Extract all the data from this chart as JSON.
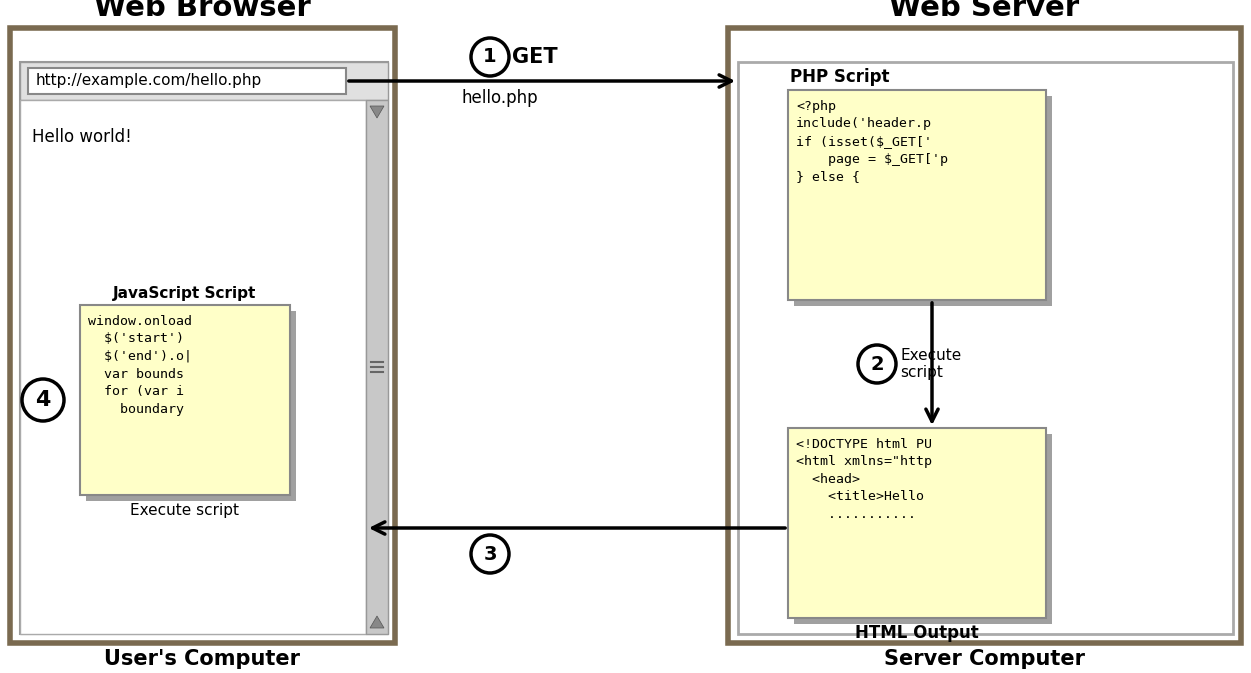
{
  "bg_color": "#ffffff",
  "browser_title": "Web Browser",
  "server_title": "Web Server",
  "user_computer": "User's Computer",
  "server_computer": "Server Computer",
  "url_text": "http://example.com/hello.php",
  "hello_world": "Hello world!",
  "php_script_label": "PHP Script",
  "php_code": "<?php\ninclude('header.p\nif (isset($_GET['\n    page = $_GET['p\n} else {",
  "js_script_label": "JavaScript Script",
  "js_code": "window.onload\n  $('start')\n  $('end').o|\n  var bounds\n  for (var i\n    boundary",
  "html_code": "<!DOCTYPE html PU\n<html xmlns=\"http\n  <head>\n    <title>Hello\n    ...........",
  "html_label": "HTML Output",
  "execute_script_label": "Execute script",
  "get_label": "GET",
  "hello_php": "hello.php",
  "step1": "1",
  "step2": "2",
  "step3": "3",
  "step4": "4",
  "execute_script_srv": "Execute\nscript",
  "code_bg": "#ffffc8",
  "outer_border": "#7a6a50",
  "shadow_color": "#a0a0a0"
}
